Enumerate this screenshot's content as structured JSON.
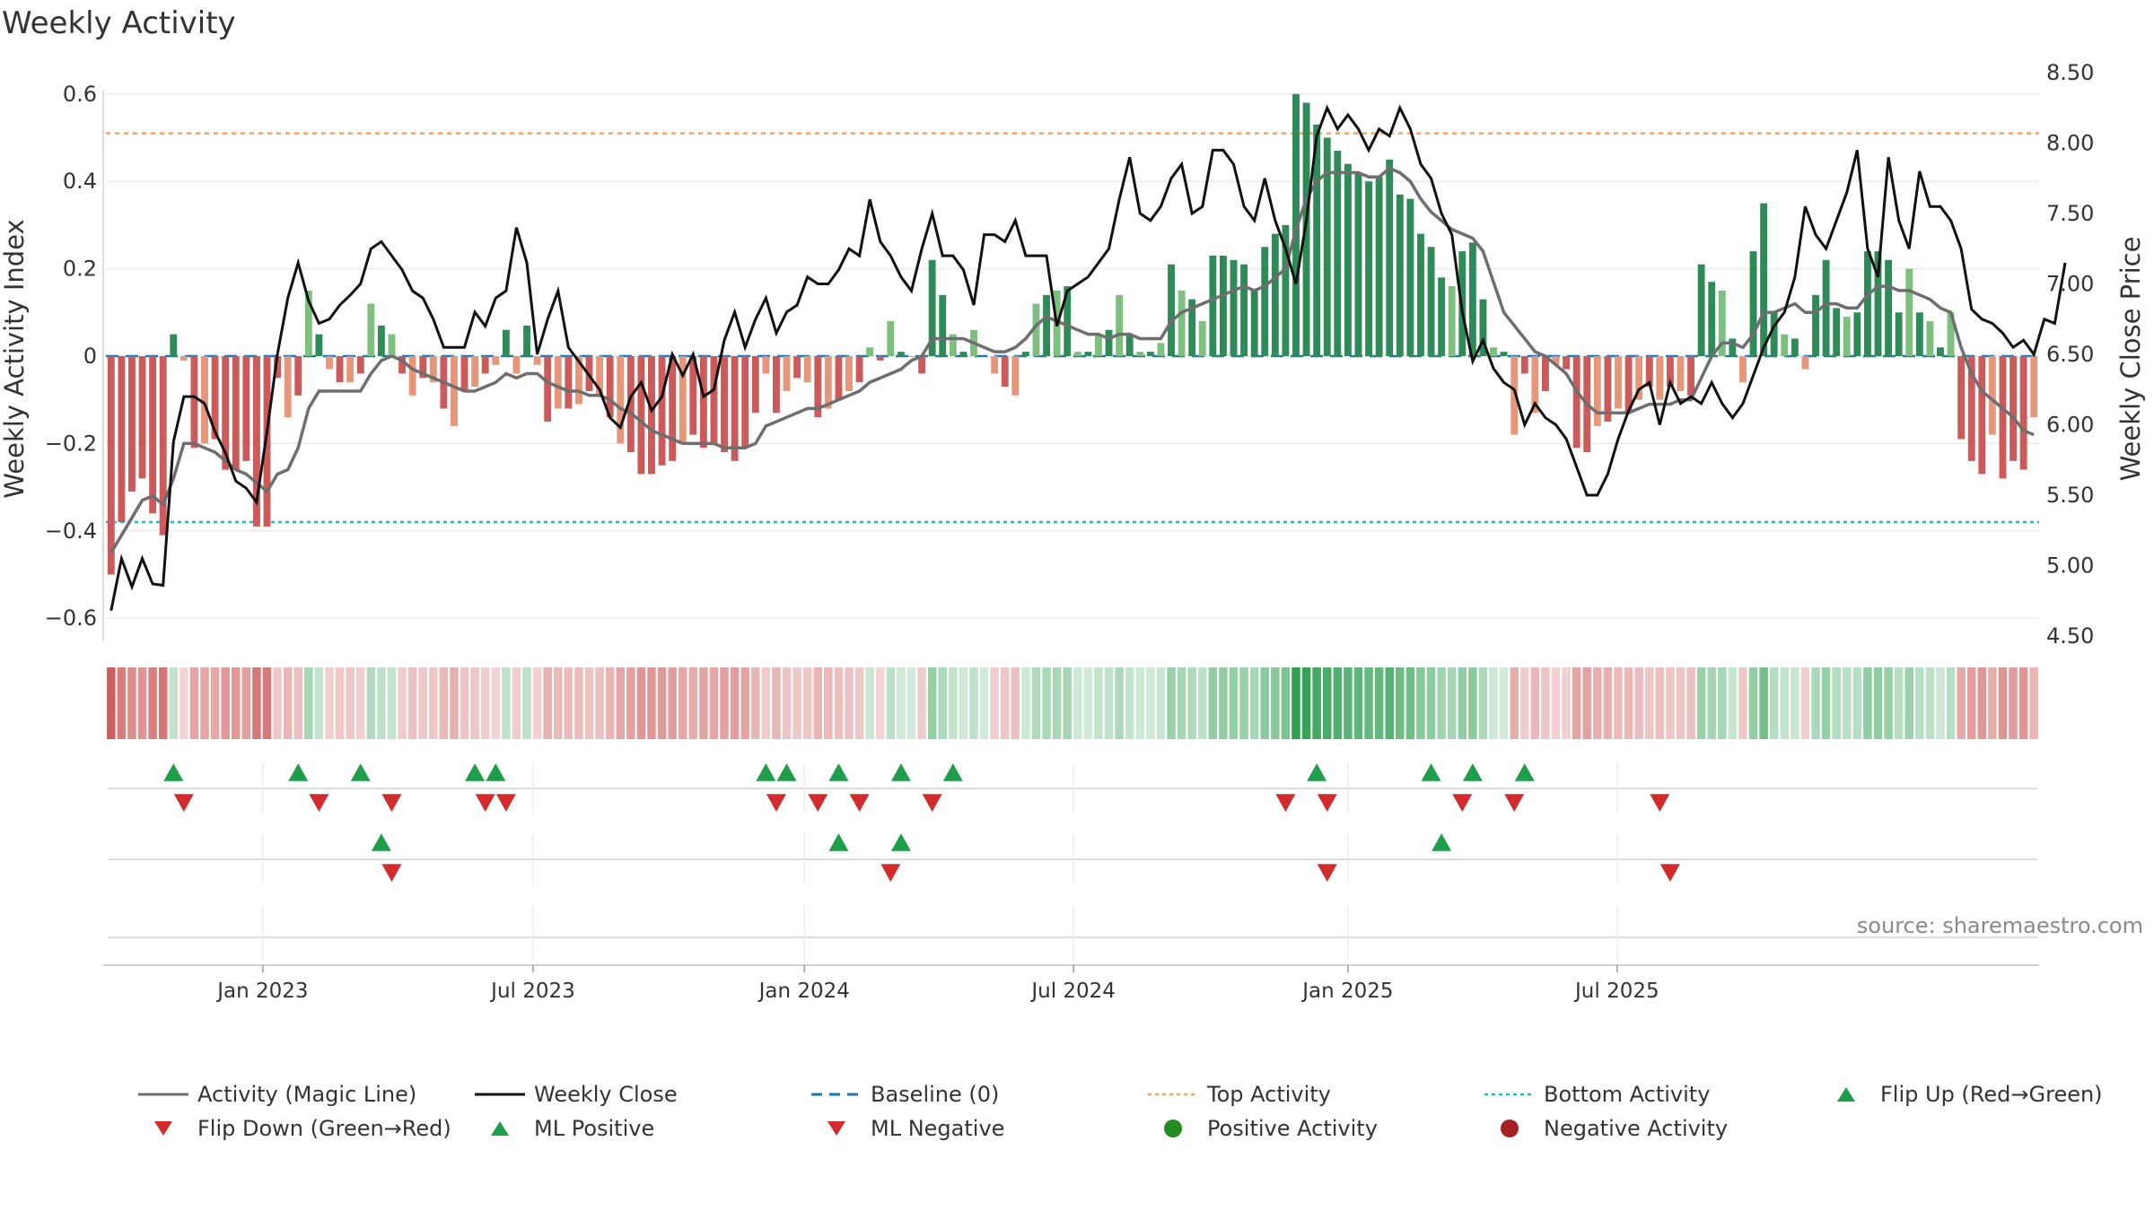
{
  "title": "Weekly Activity",
  "source_note": "source: sharemaestro.com",
  "colors": {
    "positive_dark": "#2e8b57",
    "positive_light": "#7dbf7d",
    "negative_dark": "#cc5a5a",
    "negative_light": "#e8967a",
    "magic_line": "#6e6e6e",
    "close_line": "#111111",
    "baseline": "#1f77b4",
    "top_line": "#f4a460",
    "bottom_line": "#17becf",
    "marker_up": "#1e9e4a",
    "marker_down": "#d22b2b",
    "dot_positive": "#228b22",
    "dot_negative": "#a52020"
  },
  "legend": [
    {
      "label": "Activity (Magic Line)",
      "symbol": "line-solid-gray"
    },
    {
      "label": "Weekly Close",
      "symbol": "line-solid-black"
    },
    {
      "label": "Baseline (0)",
      "symbol": "line-dashed-blue"
    },
    {
      "label": "Top Activity",
      "symbol": "line-dotted-orange"
    },
    {
      "label": "Bottom Activity",
      "symbol": "line-dotted-cyan"
    },
    {
      "label": "Flip Up (Red→Green)",
      "symbol": "triangle-up"
    },
    {
      "label": "Flip Down (Green→Red)",
      "symbol": "triangle-down"
    },
    {
      "label": "ML Positive",
      "symbol": "triangle-up"
    },
    {
      "label": "ML Negative",
      "symbol": "triangle-down"
    },
    {
      "label": "Positive Activity",
      "symbol": "dot-green"
    },
    {
      "label": "Negative Activity",
      "symbol": "dot-red"
    }
  ],
  "chart_data": {
    "type": "bar",
    "title": "Weekly Activity",
    "xlabel": "",
    "ylabel": "Weekly Activity Index",
    "y2label": "Weekly Close Price",
    "ylim": [
      -0.65,
      0.6
    ],
    "y_ticks": [
      "−0.6",
      "−0.4",
      "−0.2",
      "0",
      "0.2",
      "0.4",
      "0.6"
    ],
    "y2lim": [
      4.5,
      8.5
    ],
    "y2_ticks": [
      "4.50",
      "5.00",
      "5.50",
      "6.00",
      "6.50",
      "7.00",
      "7.50",
      "8.00",
      "8.50"
    ],
    "x_ticks": [
      {
        "label": "Jan 2023",
        "week": 14.6
      },
      {
        "label": "Jul 2023",
        "week": 40.6
      },
      {
        "label": "Jan 2024",
        "week": 66.7
      },
      {
        "label": "Jul 2024",
        "week": 92.6
      },
      {
        "label": "Jan 2025",
        "week": 119.0
      },
      {
        "label": "Jul 2025",
        "week": 144.9
      }
    ],
    "top_activity": 0.51,
    "bottom_activity": -0.38,
    "baseline": 0,
    "series": [
      {
        "name": "Activity",
        "kind": "bar",
        "values": [
          -0.5,
          -0.38,
          -0.31,
          -0.28,
          -0.36,
          -0.41,
          0.05,
          -0.01,
          -0.21,
          -0.2,
          -0.19,
          -0.26,
          -0.26,
          -0.24,
          -0.39,
          -0.39,
          -0.05,
          -0.14,
          -0.09,
          0.15,
          0.05,
          -0.03,
          -0.06,
          -0.06,
          -0.04,
          0.12,
          0.07,
          0.05,
          -0.04,
          -0.09,
          -0.05,
          -0.06,
          -0.12,
          -0.16,
          -0.08,
          -0.07,
          -0.04,
          -0.02,
          0.06,
          -0.04,
          0.07,
          -0.02,
          -0.15,
          -0.12,
          -0.12,
          -0.11,
          -0.08,
          -0.09,
          -0.14,
          -0.2,
          -0.22,
          -0.27,
          -0.27,
          -0.25,
          -0.24,
          -0.2,
          -0.18,
          -0.21,
          -0.2,
          -0.22,
          -0.24,
          -0.21,
          -0.13,
          -0.04,
          -0.13,
          -0.08,
          -0.05,
          -0.06,
          -0.14,
          -0.12,
          -0.1,
          -0.08,
          -0.06,
          0.02,
          -0.01,
          0.08,
          0.01,
          0,
          -0.04,
          0.22,
          0.14,
          0.05,
          0.01,
          0.06,
          0,
          -0.04,
          -0.07,
          -0.09,
          0.01,
          0.12,
          0.14,
          0.15,
          0.16,
          0.01,
          0.01,
          0.05,
          0.06,
          0.14,
          0.05,
          0.01,
          0.01,
          0.03,
          0.21,
          0.15,
          0.13,
          0.08,
          0.23,
          0.23,
          0.22,
          0.21,
          0.15,
          0.25,
          0.28,
          0.3,
          0.6,
          0.58,
          0.53,
          0.5,
          0.47,
          0.44,
          0.42,
          0.4,
          0.41,
          0.45,
          0.37,
          0.36,
          0.28,
          0.25,
          0.18,
          0.16,
          0.24,
          0.26,
          0.13,
          0.02,
          0.01,
          -0.18,
          -0.04,
          -0.13,
          -0.08,
          -0.02,
          -0.03,
          -0.21,
          -0.22,
          -0.16,
          -0.15,
          -0.12,
          -0.13,
          -0.1,
          -0.07,
          -0.1,
          -0.07,
          -0.08,
          -0.09,
          0.21,
          0.17,
          0.15,
          0.04,
          -0.06,
          0.24,
          0.35,
          0.1,
          0.05,
          0.04,
          -0.03,
          0.14,
          0.22,
          0.11,
          0.09,
          0.1,
          0.24,
          0.24,
          0.22,
          0.1,
          0.2,
          0.1,
          0.08,
          0.02,
          0.1,
          -0.19,
          -0.24,
          -0.27,
          -0.18,
          -0.28,
          -0.24,
          -0.26,
          -0.14
        ]
      },
      {
        "name": "Activity (Magic Line)",
        "kind": "line",
        "values": [
          -0.45,
          -0.41,
          -0.37,
          -0.33,
          -0.32,
          -0.34,
          -0.28,
          -0.2,
          -0.2,
          -0.21,
          -0.22,
          -0.24,
          -0.26,
          -0.27,
          -0.29,
          -0.31,
          -0.27,
          -0.26,
          -0.21,
          -0.12,
          -0.08,
          -0.08,
          -0.08,
          -0.08,
          -0.08,
          -0.04,
          -0.01,
          0,
          -0.01,
          -0.03,
          -0.04,
          -0.05,
          -0.06,
          -0.07,
          -0.08,
          -0.08,
          -0.07,
          -0.06,
          -0.04,
          -0.05,
          -0.04,
          -0.04,
          -0.06,
          -0.07,
          -0.08,
          -0.08,
          -0.09,
          -0.09,
          -0.1,
          -0.12,
          -0.13,
          -0.15,
          -0.17,
          -0.18,
          -0.19,
          -0.2,
          -0.2,
          -0.2,
          -0.2,
          -0.21,
          -0.21,
          -0.21,
          -0.2,
          -0.16,
          -0.15,
          -0.14,
          -0.13,
          -0.12,
          -0.12,
          -0.11,
          -0.1,
          -0.09,
          -0.08,
          -0.06,
          -0.05,
          -0.04,
          -0.03,
          -0.01,
          0,
          0.04,
          0.04,
          0.04,
          0.04,
          0.03,
          0.02,
          0.01,
          0.01,
          0.02,
          0.04,
          0.07,
          0.09,
          0.08,
          0.07,
          0.06,
          0.05,
          0.05,
          0.04,
          0.05,
          0.05,
          0.04,
          0.04,
          0.04,
          0.08,
          0.1,
          0.11,
          0.12,
          0.13,
          0.14,
          0.15,
          0.16,
          0.15,
          0.16,
          0.18,
          0.2,
          0.29,
          0.36,
          0.4,
          0.42,
          0.42,
          0.42,
          0.42,
          0.41,
          0.41,
          0.43,
          0.42,
          0.4,
          0.36,
          0.33,
          0.31,
          0.29,
          0.28,
          0.27,
          0.24,
          0.17,
          0.1,
          0.07,
          0.04,
          0.01,
          0,
          -0.02,
          -0.04,
          -0.08,
          -0.11,
          -0.13,
          -0.13,
          -0.13,
          -0.13,
          -0.12,
          -0.11,
          -0.11,
          -0.11,
          -0.1,
          -0.1,
          -0.05,
          0,
          0.03,
          0.03,
          0.02,
          0.05,
          0.1,
          0.1,
          0.11,
          0.12,
          0.1,
          0.1,
          0.12,
          0.12,
          0.11,
          0.11,
          0.14,
          0.16,
          0.16,
          0.15,
          0.15,
          0.14,
          0.13,
          0.11,
          0.1,
          0.02,
          -0.04,
          -0.08,
          -0.1,
          -0.12,
          -0.14,
          -0.17,
          -0.18
        ]
      },
      {
        "name": "Weekly Close",
        "kind": "line",
        "axis": "y2",
        "values": [
          4.68,
          5.05,
          4.85,
          5.05,
          4.87,
          4.86,
          5.88,
          6.2,
          6.2,
          6.15,
          5.95,
          5.8,
          5.6,
          5.55,
          5.45,
          5.95,
          6.5,
          6.9,
          7.15,
          6.88,
          6.72,
          6.75,
          6.85,
          6.92,
          7.0,
          7.25,
          7.3,
          7.2,
          7.1,
          6.95,
          6.9,
          6.75,
          6.55,
          6.55,
          6.55,
          6.8,
          6.7,
          6.9,
          6.95,
          7.4,
          7.15,
          6.5,
          6.75,
          6.95,
          6.55,
          6.45,
          6.35,
          6.25,
          6.05,
          5.98,
          6.2,
          6.3,
          6.1,
          6.2,
          6.5,
          6.35,
          6.5,
          6.2,
          6.25,
          6.6,
          6.8,
          6.55,
          6.75,
          6.9,
          6.65,
          6.8,
          6.85,
          7.05,
          7.0,
          7.0,
          7.1,
          7.25,
          7.2,
          7.6,
          7.3,
          7.2,
          7.05,
          6.95,
          7.25,
          7.5,
          7.2,
          7.2,
          7.1,
          6.85,
          7.35,
          7.35,
          7.3,
          7.45,
          7.2,
          7.2,
          7.2,
          6.7,
          6.95,
          7.0,
          7.05,
          7.15,
          7.25,
          7.6,
          7.9,
          7.5,
          7.45,
          7.55,
          7.75,
          7.85,
          7.5,
          7.55,
          7.95,
          7.95,
          7.85,
          7.55,
          7.45,
          7.75,
          7.45,
          7.25,
          7.0,
          7.45,
          8.05,
          8.25,
          8.1,
          8.2,
          8.1,
          7.95,
          8.1,
          8.05,
          8.25,
          8.1,
          7.85,
          7.75,
          7.5,
          7.35,
          6.8,
          6.45,
          6.6,
          6.4,
          6.3,
          6.25,
          6.0,
          6.15,
          6.05,
          6.0,
          5.9,
          5.7,
          5.5,
          5.5,
          5.65,
          5.9,
          6.1,
          6.25,
          6.3,
          6.0,
          6.3,
          6.15,
          6.2,
          6.15,
          6.3,
          6.15,
          6.05,
          6.15,
          6.35,
          6.55,
          6.7,
          6.8,
          7.05,
          7.55,
          7.35,
          7.25,
          7.45,
          7.65,
          7.95,
          7.25,
          7.05,
          7.9,
          7.45,
          7.25,
          7.8,
          7.55,
          7.55,
          7.45,
          7.25,
          6.82,
          6.75,
          6.72,
          6.65,
          6.55,
          6.6,
          6.5,
          6.75,
          6.72,
          7.15
        ]
      }
    ],
    "markers": {
      "flip_up_weeks": [
        6,
        18,
        24,
        35,
        37,
        63,
        65,
        70,
        76,
        81,
        116,
        127,
        131,
        136
      ],
      "flip_down_weeks": [
        7,
        20,
        27,
        36,
        38,
        64,
        68,
        72,
        79,
        113,
        117,
        130,
        135,
        149
      ],
      "ml_positive_weeks": [
        26,
        70,
        76,
        128
      ],
      "ml_negative_weeks": [
        27,
        75,
        117,
        150
      ]
    },
    "legend_position": "bottom"
  }
}
